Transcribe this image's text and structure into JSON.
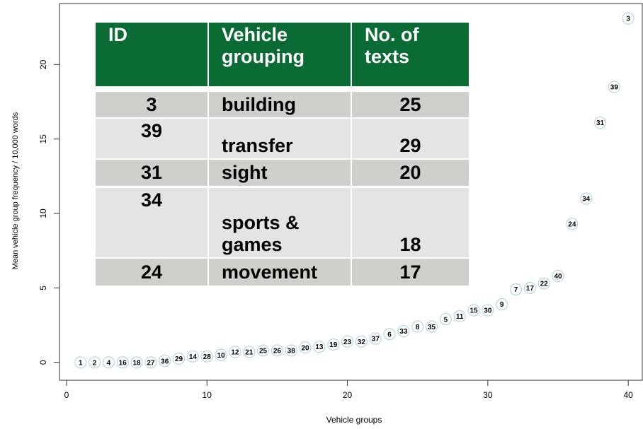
{
  "chart_data": {
    "type": "scatter",
    "xlabel": "Vehicle groups",
    "ylabel": "Mean vehicle group frequency / 10,000 words",
    "x": [
      1,
      2,
      3,
      4,
      5,
      6,
      7,
      8,
      9,
      10,
      11,
      12,
      13,
      14,
      15,
      16,
      17,
      18,
      19,
      20,
      21,
      22,
      23,
      24,
      25,
      26,
      27,
      28,
      29,
      30,
      31,
      32,
      33,
      34,
      35,
      36,
      37,
      38,
      39,
      40
    ],
    "values": [
      0,
      0,
      0,
      0,
      0,
      0,
      0.1,
      0.25,
      0.4,
      0.4,
      0.5,
      0.7,
      0.7,
      0.8,
      0.8,
      0.8,
      1.0,
      1.05,
      1.2,
      1.4,
      1.4,
      1.6,
      1.9,
      2.1,
      2.4,
      2.4,
      2.9,
      3.1,
      3.5,
      3.5,
      3.9,
      4.9,
      5.0,
      5.3,
      5.8,
      9.3,
      11.0,
      16.1,
      18.5,
      23.1
    ],
    "point_labels": [
      1,
      2,
      4,
      16,
      18,
      27,
      36,
      29,
      14,
      28,
      10,
      12,
      21,
      25,
      26,
      38,
      20,
      13,
      19,
      23,
      32,
      37,
      6,
      33,
      8,
      35,
      5,
      11,
      15,
      30,
      9,
      7,
      17,
      22,
      40,
      24,
      34,
      31,
      39,
      3
    ],
    "color": "#a8d0e6",
    "xlim": [
      -0.5,
      41
    ],
    "ylim": [
      -1.2,
      24.1
    ],
    "xticks": [
      0,
      10,
      20,
      30,
      40
    ],
    "yticks": [
      0,
      5,
      10,
      15,
      20
    ]
  },
  "table": {
    "header": [
      "ID",
      "Vehicle grouping",
      "No. of texts"
    ],
    "rows": [
      [
        3,
        "building",
        25
      ],
      [
        39,
        "transfer",
        29
      ],
      [
        31,
        "sight",
        20
      ],
      [
        34,
        "sports & games",
        18
      ],
      [
        24,
        "movement",
        17
      ]
    ]
  }
}
